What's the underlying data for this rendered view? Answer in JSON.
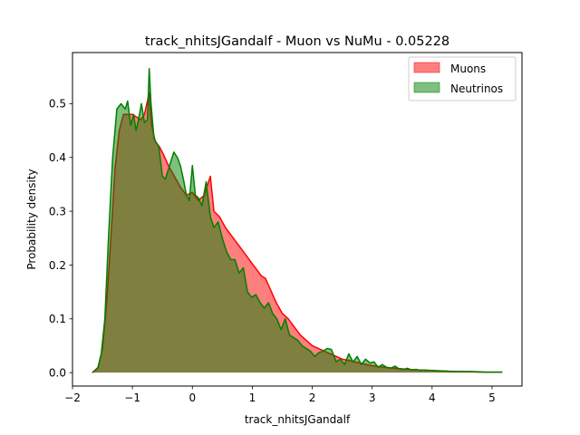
{
  "chart_data": {
    "type": "area",
    "title": "track_nhitsJGandalf - Muon vs NuMu - 0.05228",
    "xlabel": "track_nhitsJGandalf",
    "ylabel": "Probability density",
    "xlim": [
      -2.0,
      5.5
    ],
    "ylim": [
      -0.025,
      0.595
    ],
    "xticks": [
      -2,
      -1,
      0,
      1,
      2,
      3,
      4,
      5
    ],
    "xtick_labels": [
      "−2",
      "−1",
      "0",
      "1",
      "2",
      "3",
      "4",
      "5"
    ],
    "yticks": [
      0.0,
      0.1,
      0.2,
      0.3,
      0.4,
      0.5
    ],
    "ytick_labels": [
      "0.0",
      "0.1",
      "0.2",
      "0.3",
      "0.4",
      "0.5"
    ],
    "grid": false,
    "legend_position": "top-right",
    "series": [
      {
        "name": "Muons",
        "line_color": "#ff0000",
        "fill_color": "#ff0000",
        "fill_opacity": 0.5,
        "x": [
          -1.67,
          -1.57,
          -1.5,
          -1.43,
          -1.36,
          -1.29,
          -1.22,
          -1.15,
          -1.08,
          -1.0,
          -0.93,
          -0.86,
          -0.8,
          -0.72,
          -0.68,
          -0.62,
          -0.55,
          -0.48,
          -0.4,
          -0.3,
          -0.2,
          -0.1,
          0.0,
          0.1,
          0.2,
          0.3,
          0.36,
          0.45,
          0.55,
          0.65,
          0.75,
          0.85,
          0.95,
          1.05,
          1.15,
          1.22,
          1.3,
          1.4,
          1.5,
          1.6,
          1.7,
          1.8,
          1.9,
          2.0,
          2.1,
          2.2,
          2.3,
          2.4,
          2.5,
          2.6,
          2.7,
          2.8,
          2.9,
          3.0,
          3.2,
          3.4,
          3.6,
          3.8,
          4.0,
          4.2,
          4.4,
          4.6,
          4.8,
          5.0,
          5.17
        ],
        "y": [
          0.0,
          0.01,
          0.045,
          0.13,
          0.25,
          0.38,
          0.45,
          0.48,
          0.48,
          0.48,
          0.475,
          0.47,
          0.48,
          0.52,
          0.46,
          0.43,
          0.42,
          0.405,
          0.385,
          0.365,
          0.345,
          0.33,
          0.335,
          0.32,
          0.33,
          0.365,
          0.3,
          0.29,
          0.27,
          0.255,
          0.24,
          0.225,
          0.21,
          0.195,
          0.18,
          0.175,
          0.155,
          0.13,
          0.11,
          0.1,
          0.085,
          0.07,
          0.06,
          0.05,
          0.045,
          0.04,
          0.035,
          0.03,
          0.025,
          0.023,
          0.02,
          0.018,
          0.015,
          0.013,
          0.01,
          0.008,
          0.006,
          0.005,
          0.004,
          0.003,
          0.002,
          0.002,
          0.001,
          0.001,
          0.001
        ]
      },
      {
        "name": "Neutrinos",
        "line_color": "#008000",
        "fill_color": "#008000",
        "fill_opacity": 0.5,
        "x": [
          -1.67,
          -1.58,
          -1.52,
          -1.46,
          -1.4,
          -1.33,
          -1.26,
          -1.19,
          -1.12,
          -1.08,
          -1.03,
          -0.98,
          -0.94,
          -0.9,
          -0.85,
          -0.8,
          -0.75,
          -0.72,
          -0.69,
          -0.64,
          -0.56,
          -0.5,
          -0.45,
          -0.38,
          -0.31,
          -0.25,
          -0.2,
          -0.15,
          -0.1,
          -0.05,
          0.0,
          0.05,
          0.1,
          0.16,
          0.23,
          0.3,
          0.36,
          0.43,
          0.5,
          0.57,
          0.64,
          0.71,
          0.78,
          0.85,
          0.92,
          0.99,
          1.06,
          1.13,
          1.2,
          1.27,
          1.34,
          1.41,
          1.48,
          1.55,
          1.62,
          1.69,
          1.76,
          1.83,
          1.9,
          1.97,
          2.04,
          2.11,
          2.18,
          2.25,
          2.32,
          2.4,
          2.47,
          2.54,
          2.61,
          2.68,
          2.75,
          2.82,
          2.89,
          2.96,
          3.03,
          3.1,
          3.17,
          3.24,
          3.31,
          3.38,
          3.45,
          3.52,
          3.59,
          3.66,
          3.73,
          3.8,
          3.87,
          3.94,
          4.01,
          4.08,
          4.2,
          4.35,
          4.5,
          4.7,
          4.9,
          5.17
        ],
        "y": [
          0.0,
          0.008,
          0.035,
          0.1,
          0.25,
          0.4,
          0.49,
          0.5,
          0.49,
          0.505,
          0.46,
          0.48,
          0.45,
          0.47,
          0.5,
          0.465,
          0.47,
          0.565,
          0.5,
          0.435,
          0.42,
          0.365,
          0.36,
          0.385,
          0.41,
          0.4,
          0.385,
          0.36,
          0.33,
          0.32,
          0.385,
          0.33,
          0.325,
          0.31,
          0.355,
          0.29,
          0.27,
          0.28,
          0.25,
          0.225,
          0.21,
          0.21,
          0.185,
          0.195,
          0.15,
          0.14,
          0.145,
          0.13,
          0.12,
          0.13,
          0.11,
          0.1,
          0.08,
          0.1,
          0.07,
          0.065,
          0.06,
          0.05,
          0.045,
          0.04,
          0.03,
          0.037,
          0.04,
          0.045,
          0.043,
          0.02,
          0.025,
          0.015,
          0.035,
          0.02,
          0.03,
          0.015,
          0.025,
          0.018,
          0.02,
          0.01,
          0.015,
          0.01,
          0.008,
          0.012,
          0.007,
          0.006,
          0.008,
          0.005,
          0.006,
          0.004,
          0.005,
          0.004,
          0.004,
          0.003,
          0.003,
          0.002,
          0.002,
          0.002,
          0.001,
          0.001
        ]
      }
    ]
  }
}
